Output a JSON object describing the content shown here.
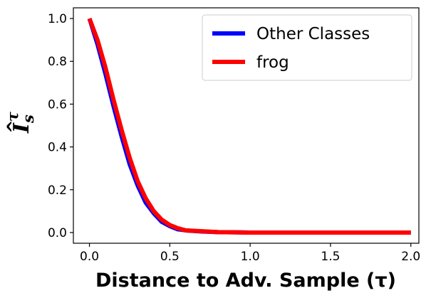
{
  "chart_data": {
    "type": "line",
    "title": "",
    "xlabel": "Distance to Adv. Sample (τ)",
    "ylabel": "Î_s^τ",
    "xlim": [
      -0.1,
      2.05
    ],
    "ylim": [
      -0.05,
      1.05
    ],
    "xticks": [
      0.0,
      0.5,
      1.0,
      1.5,
      2.0
    ],
    "xtick_labels": [
      "0.0",
      "0.5",
      "1.0",
      "1.5",
      "2.0"
    ],
    "yticks": [
      0.0,
      0.2,
      0.4,
      0.6,
      0.8,
      1.0
    ],
    "ytick_labels": [
      "0.0",
      "0.2",
      "0.4",
      "0.6",
      "0.8",
      "1.0"
    ],
    "grid": false,
    "legend_position": "top-right",
    "series": [
      {
        "name": "Other Classes",
        "color": "#0000ff",
        "x": [
          0.0,
          0.05,
          0.1,
          0.15,
          0.2,
          0.25,
          0.3,
          0.35,
          0.4,
          0.45,
          0.5,
          0.55,
          0.6,
          0.7,
          0.8,
          0.9,
          1.0,
          1.2,
          1.4,
          1.6,
          1.8,
          2.0
        ],
        "y": [
          1.0,
          0.88,
          0.74,
          0.59,
          0.45,
          0.32,
          0.22,
          0.14,
          0.09,
          0.05,
          0.03,
          0.015,
          0.01,
          0.005,
          0.002,
          0.001,
          0.0,
          0.0,
          0.0,
          0.0,
          0.0,
          0.0
        ]
      },
      {
        "name": "frog",
        "color": "#ff0000",
        "x": [
          0.0,
          0.05,
          0.1,
          0.15,
          0.2,
          0.25,
          0.3,
          0.35,
          0.4,
          0.45,
          0.5,
          0.55,
          0.6,
          0.7,
          0.8,
          0.9,
          1.0,
          1.2,
          1.4,
          1.6,
          1.8,
          2.0
        ],
        "y": [
          1.0,
          0.9,
          0.77,
          0.62,
          0.48,
          0.35,
          0.24,
          0.16,
          0.1,
          0.06,
          0.035,
          0.02,
          0.01,
          0.006,
          0.002,
          0.001,
          0.0,
          0.0,
          0.0,
          0.0,
          0.0,
          0.0
        ]
      }
    ]
  }
}
